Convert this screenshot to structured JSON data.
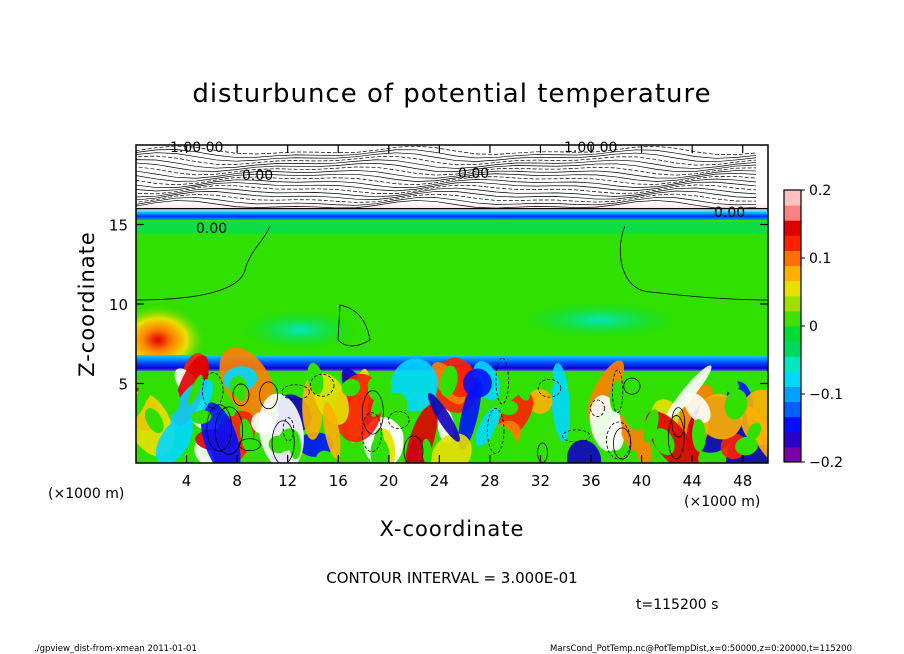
{
  "chart_data": {
    "type": "heatmap",
    "title": "disturbunce of potential temperature",
    "xlabel": "X-coordinate",
    "ylabel": "Z-coordinate",
    "x_unit": "(×1000 m)",
    "y_unit": "(×1000 m)",
    "xlim": [
      0,
      50
    ],
    "ylim": [
      0,
      20
    ],
    "x_ticks": [
      4,
      8,
      12,
      16,
      20,
      24,
      28,
      32,
      36,
      40,
      44,
      48
    ],
    "y_ticks": [
      5,
      10,
      15
    ],
    "colorbar": {
      "range": [
        -0.2,
        0.2
      ],
      "tick_labels": [
        "0.2",
        "0.1",
        "0",
        "−0.1",
        "−0.2"
      ],
      "tick_values": [
        0.2,
        0.1,
        0,
        -0.1,
        -0.2
      ],
      "colors": [
        "#7a00a8",
        "#2a00c8",
        "#0010ff",
        "#0060ff",
        "#00a0ff",
        "#00d8ff",
        "#00e8c0",
        "#00d860",
        "#00dd30",
        "#40e000",
        "#a0e000",
        "#e8e000",
        "#ffb000",
        "#ff7000",
        "#ff2000",
        "#e00000",
        "#ff8080",
        "#ffc0c0"
      ]
    },
    "contour_labels": [
      "1.00 00",
      "1.00 00",
      "0.00",
      "0.00",
      "0.00",
      "0.00"
    ],
    "contour_interval": "CONTOUR INTERVAL = 3.000E-01",
    "time": "t=115200 s"
  },
  "footer": {
    "left": "./gpview_dist-from-xmean 2011-01-01",
    "right": "MarsCond_PotTemp.nc@PotTempDist,x=0:50000,z=0:20000,t=115200"
  }
}
